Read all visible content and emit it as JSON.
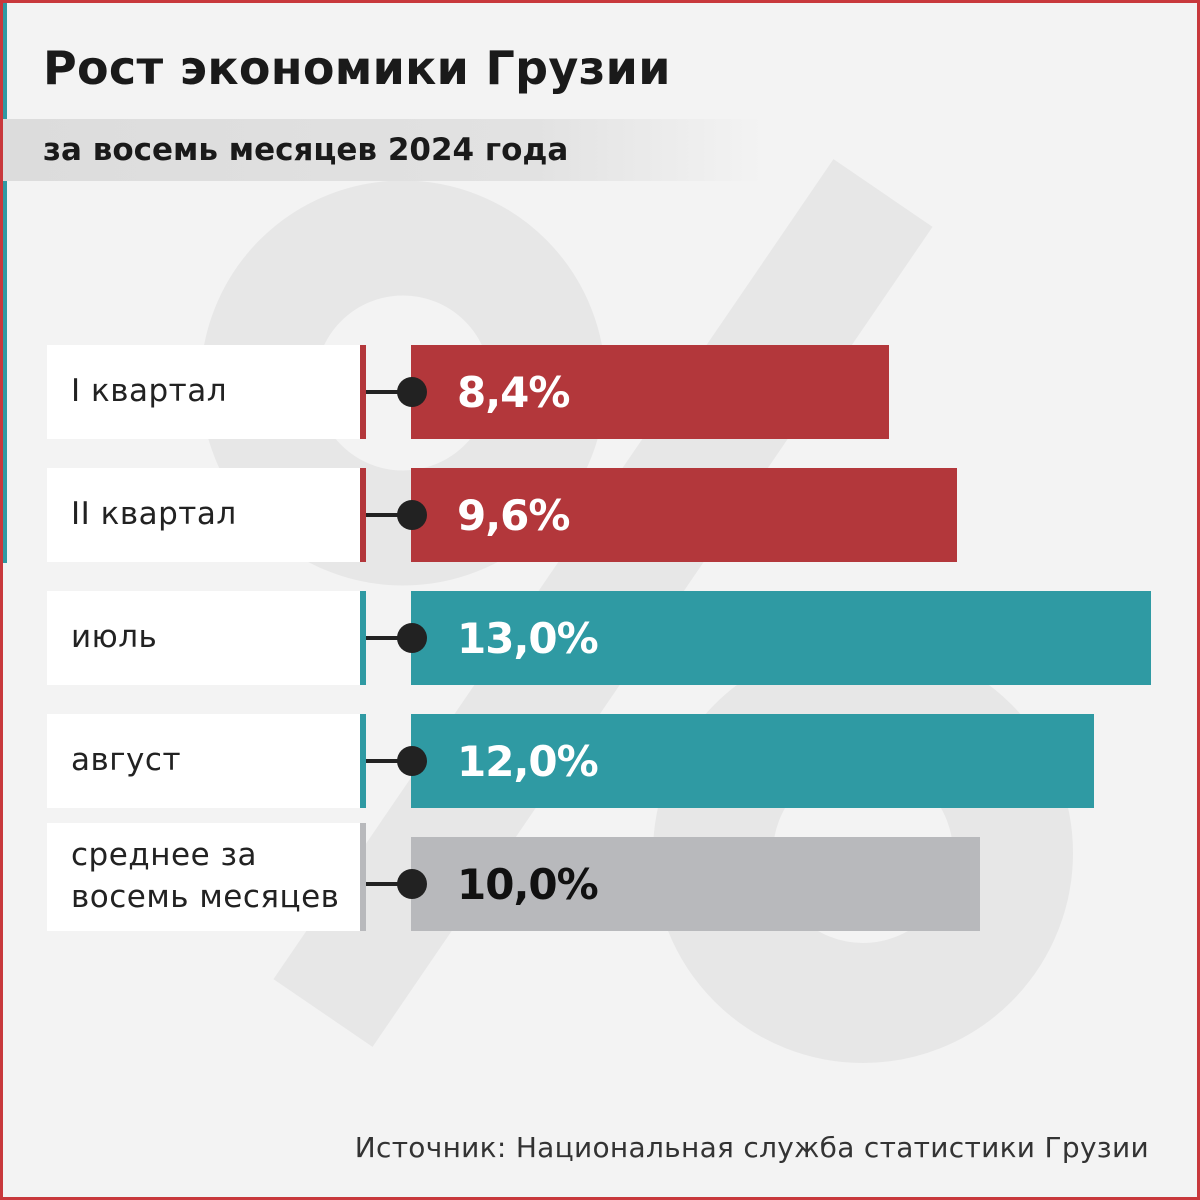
{
  "title": "Рост экономики Грузии",
  "subtitle": "за восемь месяцев 2024 года",
  "source": "Источник: Национальная служба статистики Грузии",
  "colors": {
    "quarter": "#b3373b",
    "month": "#2f9aa3",
    "average": "#b8b9bc",
    "value_light": "#ffffff",
    "value_dark": "#111111"
  },
  "chart_data": {
    "type": "bar",
    "orientation": "horizontal",
    "categories": [
      "I квартал",
      "II квартал",
      "июль",
      "август",
      "среднее за восемь месяцев"
    ],
    "values": [
      8.4,
      9.6,
      13.0,
      12.0,
      10.0
    ],
    "value_labels": [
      "8,4%",
      "9,6%",
      "13,0%",
      "12,0%",
      "10,0%"
    ],
    "groups": [
      "quarter",
      "quarter",
      "month",
      "month",
      "average"
    ],
    "title": "Рост экономики Грузии",
    "subtitle": "за восемь месяцев 2024 года",
    "xlim": [
      0,
      13.0
    ],
    "grid": false
  }
}
